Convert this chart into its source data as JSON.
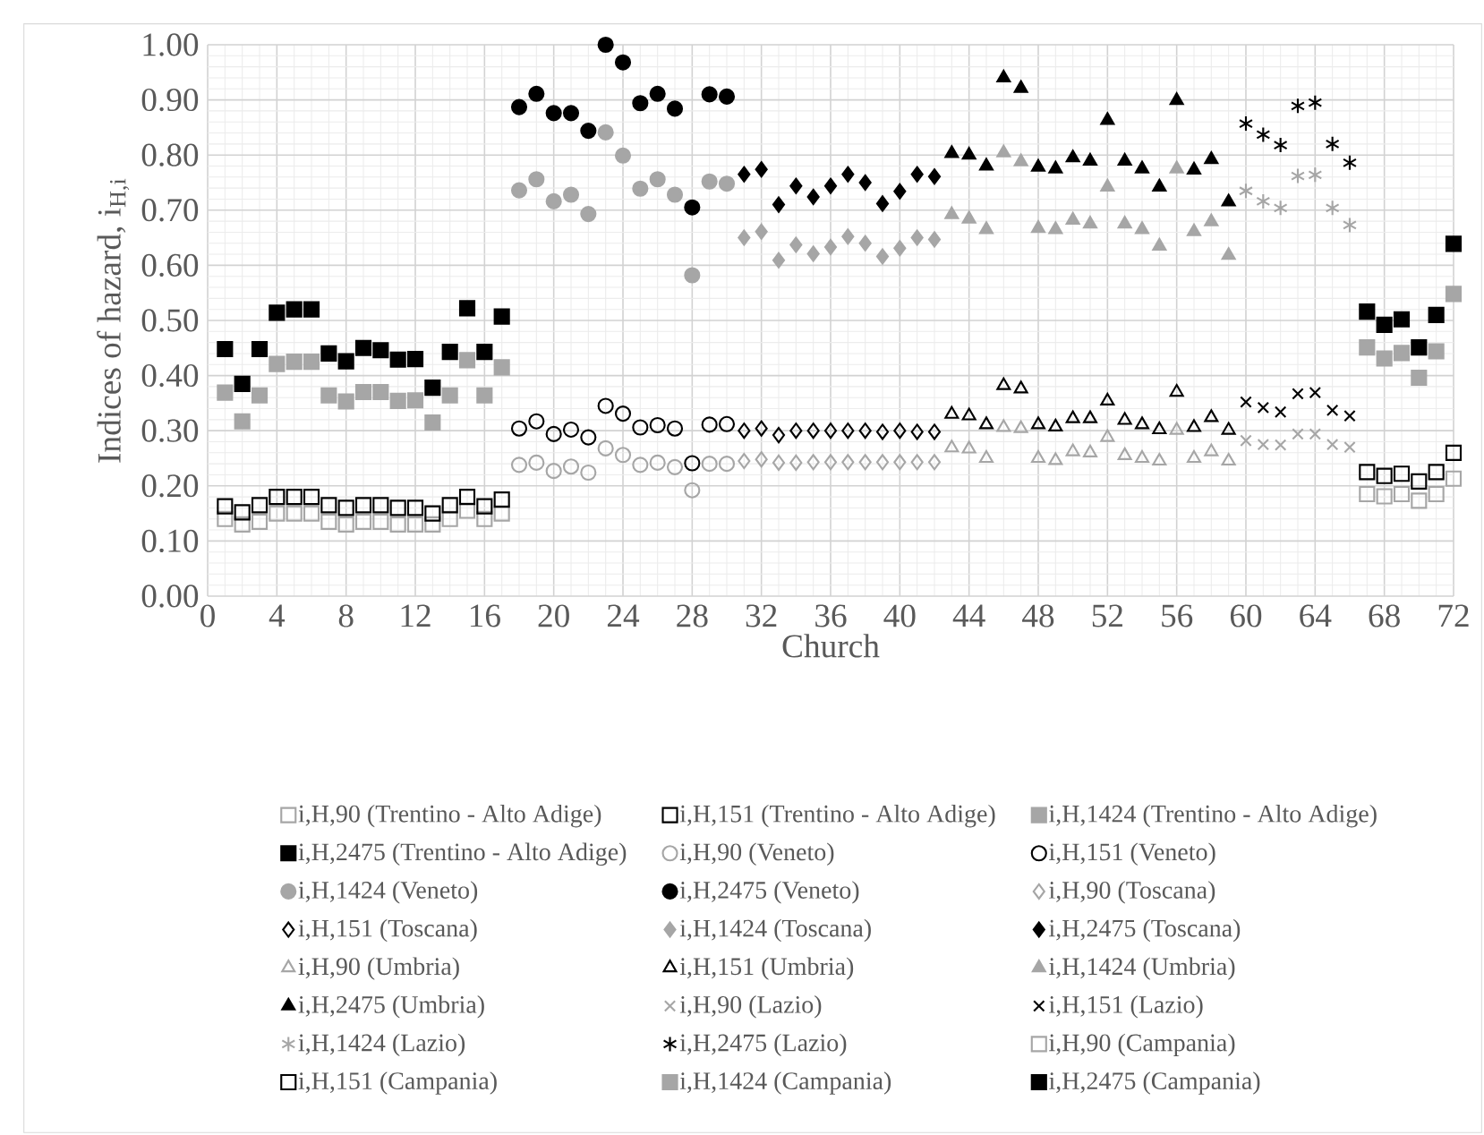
{
  "chart_data": {
    "type": "scatter",
    "xlabel": "Church",
    "ylabel": "Indices of hazard, i$_{H,i}$",
    "xlim": [
      0,
      72
    ],
    "xticks": [
      0,
      4,
      8,
      12,
      16,
      20,
      24,
      28,
      32,
      36,
      40,
      44,
      48,
      52,
      56,
      60,
      64,
      68,
      72
    ],
    "ylim": [
      0,
      1
    ],
    "yticks": [
      {
        "value": 0,
        "label": "0.00"
      },
      {
        "value": 0.1,
        "label": "0.10"
      },
      {
        "value": 0.2,
        "label": "0.20"
      },
      {
        "value": 0.3,
        "label": "0.30"
      },
      {
        "value": 0.4,
        "label": "0.40"
      },
      {
        "value": 0.5,
        "label": "0.50"
      },
      {
        "value": 0.6,
        "label": "0.60"
      },
      {
        "value": 0.7,
        "label": "0.70"
      },
      {
        "value": 0.8,
        "label": "0.80"
      },
      {
        "value": 0.9,
        "label": "0.90"
      },
      {
        "value": 1,
        "label": "1.00"
      }
    ],
    "grid": true,
    "legend": "bottom",
    "series": [
      {
        "name": "i,H,90 (Trentino - Alto Adige)",
        "color": "#a6a6a6",
        "marker": "square",
        "x": [
          1,
          2,
          3,
          4,
          5,
          6,
          7,
          8,
          9,
          10,
          11,
          12,
          13,
          14,
          15,
          16,
          17
        ],
        "values": [
          0.14,
          0.13,
          0.135,
          0.15,
          0.15,
          0.15,
          0.135,
          0.13,
          0.135,
          0.135,
          0.13,
          0.13,
          0.13,
          0.14,
          0.155,
          0.14,
          0.15
        ]
      },
      {
        "name": "i,H,151 (Trentino - Alto Adige)",
        "color": "#000000",
        "marker": "square",
        "x": [
          1,
          2,
          3,
          4,
          5,
          6,
          7,
          8,
          9,
          10,
          11,
          12,
          13,
          14,
          15,
          16,
          17
        ],
        "values": [
          0.163,
          0.152,
          0.165,
          0.18,
          0.18,
          0.18,
          0.165,
          0.16,
          0.165,
          0.165,
          0.16,
          0.16,
          0.15,
          0.165,
          0.18,
          0.163,
          0.175
        ]
      },
      {
        "name": "i,H,1424 (Trentino - Alto Adige)",
        "color": "#a6a6a6",
        "marker": "square",
        "x": [
          1,
          2,
          3,
          4,
          5,
          6,
          7,
          8,
          9,
          10,
          11,
          12,
          13,
          14,
          15,
          16,
          17
        ],
        "values": [
          0.369,
          0.317,
          0.364,
          0.421,
          0.425,
          0.425,
          0.364,
          0.353,
          0.37,
          0.37,
          0.354,
          0.355,
          0.315,
          0.364,
          0.428,
          0.364,
          0.415
        ]
      },
      {
        "name": "i,H,2475 (Trentino - Alto Adige)",
        "color": "#000000",
        "marker": "square",
        "x": [
          1,
          2,
          3,
          4,
          5,
          6,
          7,
          8,
          9,
          10,
          11,
          12,
          13,
          14,
          15,
          16,
          17
        ],
        "values": [
          0.448,
          0.385,
          0.448,
          0.514,
          0.52,
          0.52,
          0.44,
          0.426,
          0.45,
          0.446,
          0.429,
          0.43,
          0.378,
          0.443,
          0.522,
          0.443,
          0.507
        ]
      },
      {
        "name": "i,H,90 (Veneto)",
        "color": "#a6a6a6",
        "marker": "circle",
        "x": [
          18,
          19,
          20,
          21,
          22,
          23,
          24,
          25,
          26,
          27,
          28,
          29,
          30
        ],
        "values": [
          0.238,
          0.242,
          0.227,
          0.235,
          0.224,
          0.268,
          0.256,
          0.238,
          0.242,
          0.234,
          0.192,
          0.24,
          0.24
        ]
      },
      {
        "name": "i,H,151 (Veneto)",
        "color": "#000000",
        "marker": "circle",
        "x": [
          18,
          19,
          20,
          21,
          22,
          23,
          24,
          25,
          26,
          27,
          28,
          29,
          30
        ],
        "values": [
          0.304,
          0.317,
          0.294,
          0.302,
          0.288,
          0.345,
          0.331,
          0.306,
          0.31,
          0.304,
          0.241,
          0.311,
          0.312
        ]
      },
      {
        "name": "i,H,1424 (Veneto)",
        "color": "#a6a6a6",
        "marker": "circle",
        "x": [
          18,
          19,
          20,
          21,
          22,
          23,
          24,
          25,
          26,
          27,
          28,
          29,
          30
        ],
        "values": [
          0.736,
          0.756,
          0.716,
          0.728,
          0.693,
          0.841,
          0.799,
          0.739,
          0.756,
          0.728,
          0.582,
          0.752,
          0.748
        ]
      },
      {
        "name": "i,H,2475 (Veneto)",
        "color": "#000000",
        "marker": "circle",
        "x": [
          18,
          19,
          20,
          21,
          22,
          23,
          24,
          25,
          26,
          27,
          28,
          29,
          30
        ],
        "values": [
          0.887,
          0.911,
          0.876,
          0.876,
          0.844,
          1.0,
          0.968,
          0.894,
          0.911,
          0.884,
          0.705,
          0.91,
          0.906
        ]
      },
      {
        "name": "i,H,90 (Toscana)",
        "color": "#a6a6a6",
        "marker": "diamond",
        "x": [
          31,
          32,
          33,
          34,
          35,
          36,
          37,
          38,
          39,
          40,
          41,
          42
        ],
        "values": [
          0.245,
          0.248,
          0.242,
          0.242,
          0.243,
          0.243,
          0.243,
          0.243,
          0.243,
          0.243,
          0.243,
          0.243
        ]
      },
      {
        "name": "i,H,151 (Toscana)",
        "color": "#000000",
        "marker": "diamond",
        "x": [
          31,
          32,
          33,
          34,
          35,
          36,
          37,
          38,
          39,
          40,
          41,
          42
        ],
        "values": [
          0.3,
          0.304,
          0.292,
          0.3,
          0.3,
          0.3,
          0.3,
          0.3,
          0.298,
          0.3,
          0.298,
          0.298
        ]
      },
      {
        "name": "i,H,1424 (Toscana)",
        "color": "#a6a6a6",
        "marker": "diamond",
        "x": [
          31,
          32,
          33,
          34,
          35,
          36,
          37,
          38,
          39,
          40,
          41,
          42
        ],
        "values": [
          0.65,
          0.661,
          0.609,
          0.637,
          0.621,
          0.633,
          0.652,
          0.64,
          0.616,
          0.631,
          0.65,
          0.647
        ]
      },
      {
        "name": "i,H,2475 (Toscana)",
        "color": "#000000",
        "marker": "diamond",
        "x": [
          31,
          32,
          33,
          34,
          35,
          36,
          37,
          38,
          39,
          40,
          41,
          42
        ],
        "values": [
          0.765,
          0.774,
          0.71,
          0.744,
          0.724,
          0.744,
          0.765,
          0.75,
          0.712,
          0.734,
          0.765,
          0.761
        ]
      },
      {
        "name": "i,H,90 (Umbria)",
        "color": "#a6a6a6",
        "marker": "triangle",
        "x": [
          43,
          44,
          45,
          46,
          47,
          48,
          49,
          50,
          51,
          52,
          53,
          54,
          55,
          56,
          57,
          58,
          59
        ],
        "values": [
          0.269,
          0.267,
          0.25,
          0.306,
          0.304,
          0.25,
          0.246,
          0.262,
          0.26,
          0.288,
          0.255,
          0.25,
          0.245,
          0.301,
          0.25,
          0.262,
          0.245
        ]
      },
      {
        "name": "i,H,151 (Umbria)",
        "color": "#000000",
        "marker": "triangle",
        "x": [
          43,
          44,
          45,
          46,
          47,
          48,
          49,
          50,
          51,
          52,
          53,
          54,
          55,
          56,
          57,
          58,
          59
        ],
        "values": [
          0.33,
          0.327,
          0.311,
          0.382,
          0.376,
          0.311,
          0.307,
          0.322,
          0.322,
          0.354,
          0.319,
          0.311,
          0.302,
          0.37,
          0.306,
          0.324,
          0.301
        ]
      },
      {
        "name": "i,H,1424 (Umbria)",
        "color": "#a6a6a6",
        "marker": "triangle",
        "x": [
          43,
          44,
          45,
          46,
          47,
          48,
          49,
          50,
          51,
          52,
          53,
          54,
          55,
          56,
          57,
          58,
          59
        ],
        "values": [
          0.692,
          0.684,
          0.665,
          0.804,
          0.788,
          0.667,
          0.665,
          0.682,
          0.675,
          0.742,
          0.675,
          0.665,
          0.635,
          0.775,
          0.661,
          0.679,
          0.618
        ]
      },
      {
        "name": "i,H,2475 (Umbria)",
        "color": "#000000",
        "marker": "triangle",
        "x": [
          43,
          44,
          45,
          46,
          47,
          48,
          49,
          50,
          51,
          52,
          53,
          54,
          55,
          56,
          57,
          58,
          59
        ],
        "values": [
          0.803,
          0.8,
          0.78,
          0.94,
          0.921,
          0.778,
          0.775,
          0.795,
          0.789,
          0.863,
          0.789,
          0.775,
          0.742,
          0.899,
          0.773,
          0.792,
          0.715
        ]
      },
      {
        "name": "i,H,90 (Lazio)",
        "color": "#a6a6a6",
        "marker": "cross",
        "x": [
          60,
          61,
          62,
          63,
          64,
          65,
          66
        ],
        "values": [
          0.282,
          0.275,
          0.274,
          0.294,
          0.294,
          0.275,
          0.27
        ]
      },
      {
        "name": "i,H,151 (Lazio)",
        "color": "#000000",
        "marker": "cross",
        "x": [
          60,
          61,
          62,
          63,
          64,
          65,
          66
        ],
        "values": [
          0.352,
          0.342,
          0.334,
          0.367,
          0.369,
          0.337,
          0.327
        ]
      },
      {
        "name": "i,H,1424 (Lazio)",
        "color": "#a6a6a6",
        "marker": "cross",
        "x": [
          60,
          61,
          62,
          63,
          64,
          65,
          66
        ],
        "values": [
          0.735,
          0.716,
          0.704,
          0.762,
          0.764,
          0.704,
          0.673
        ]
      },
      {
        "name": "i,H,2475 (Lazio)",
        "color": "#000000",
        "marker": "cross",
        "x": [
          60,
          61,
          62,
          63,
          64,
          65,
          66
        ],
        "values": [
          0.857,
          0.837,
          0.818,
          0.889,
          0.895,
          0.82,
          0.786
        ]
      },
      {
        "name": "i,H,90 (Campania)",
        "color": "#a6a6a6",
        "marker": "square",
        "x": [
          67,
          68,
          69,
          70,
          71,
          72
        ],
        "values": [
          0.185,
          0.181,
          0.185,
          0.173,
          0.185,
          0.213
        ]
      },
      {
        "name": "i,H,151 (Campania)",
        "color": "#000000",
        "marker": "square",
        "x": [
          67,
          68,
          69,
          70,
          71,
          72
        ],
        "values": [
          0.225,
          0.218,
          0.222,
          0.208,
          0.225,
          0.26
        ]
      },
      {
        "name": "i,H,1424 (Campania)",
        "color": "#a6a6a6",
        "marker": "square",
        "x": [
          67,
          68,
          69,
          70,
          71,
          72
        ],
        "values": [
          0.451,
          0.431,
          0.441,
          0.396,
          0.444,
          0.548
        ]
      },
      {
        "name": "i,H,2475 (Campania)",
        "color": "#000000",
        "marker": "square",
        "x": [
          67,
          68,
          69,
          70,
          71,
          72
        ],
        "values": [
          0.516,
          0.492,
          0.502,
          0.451,
          0.51,
          0.639
        ]
      }
    ]
  }
}
